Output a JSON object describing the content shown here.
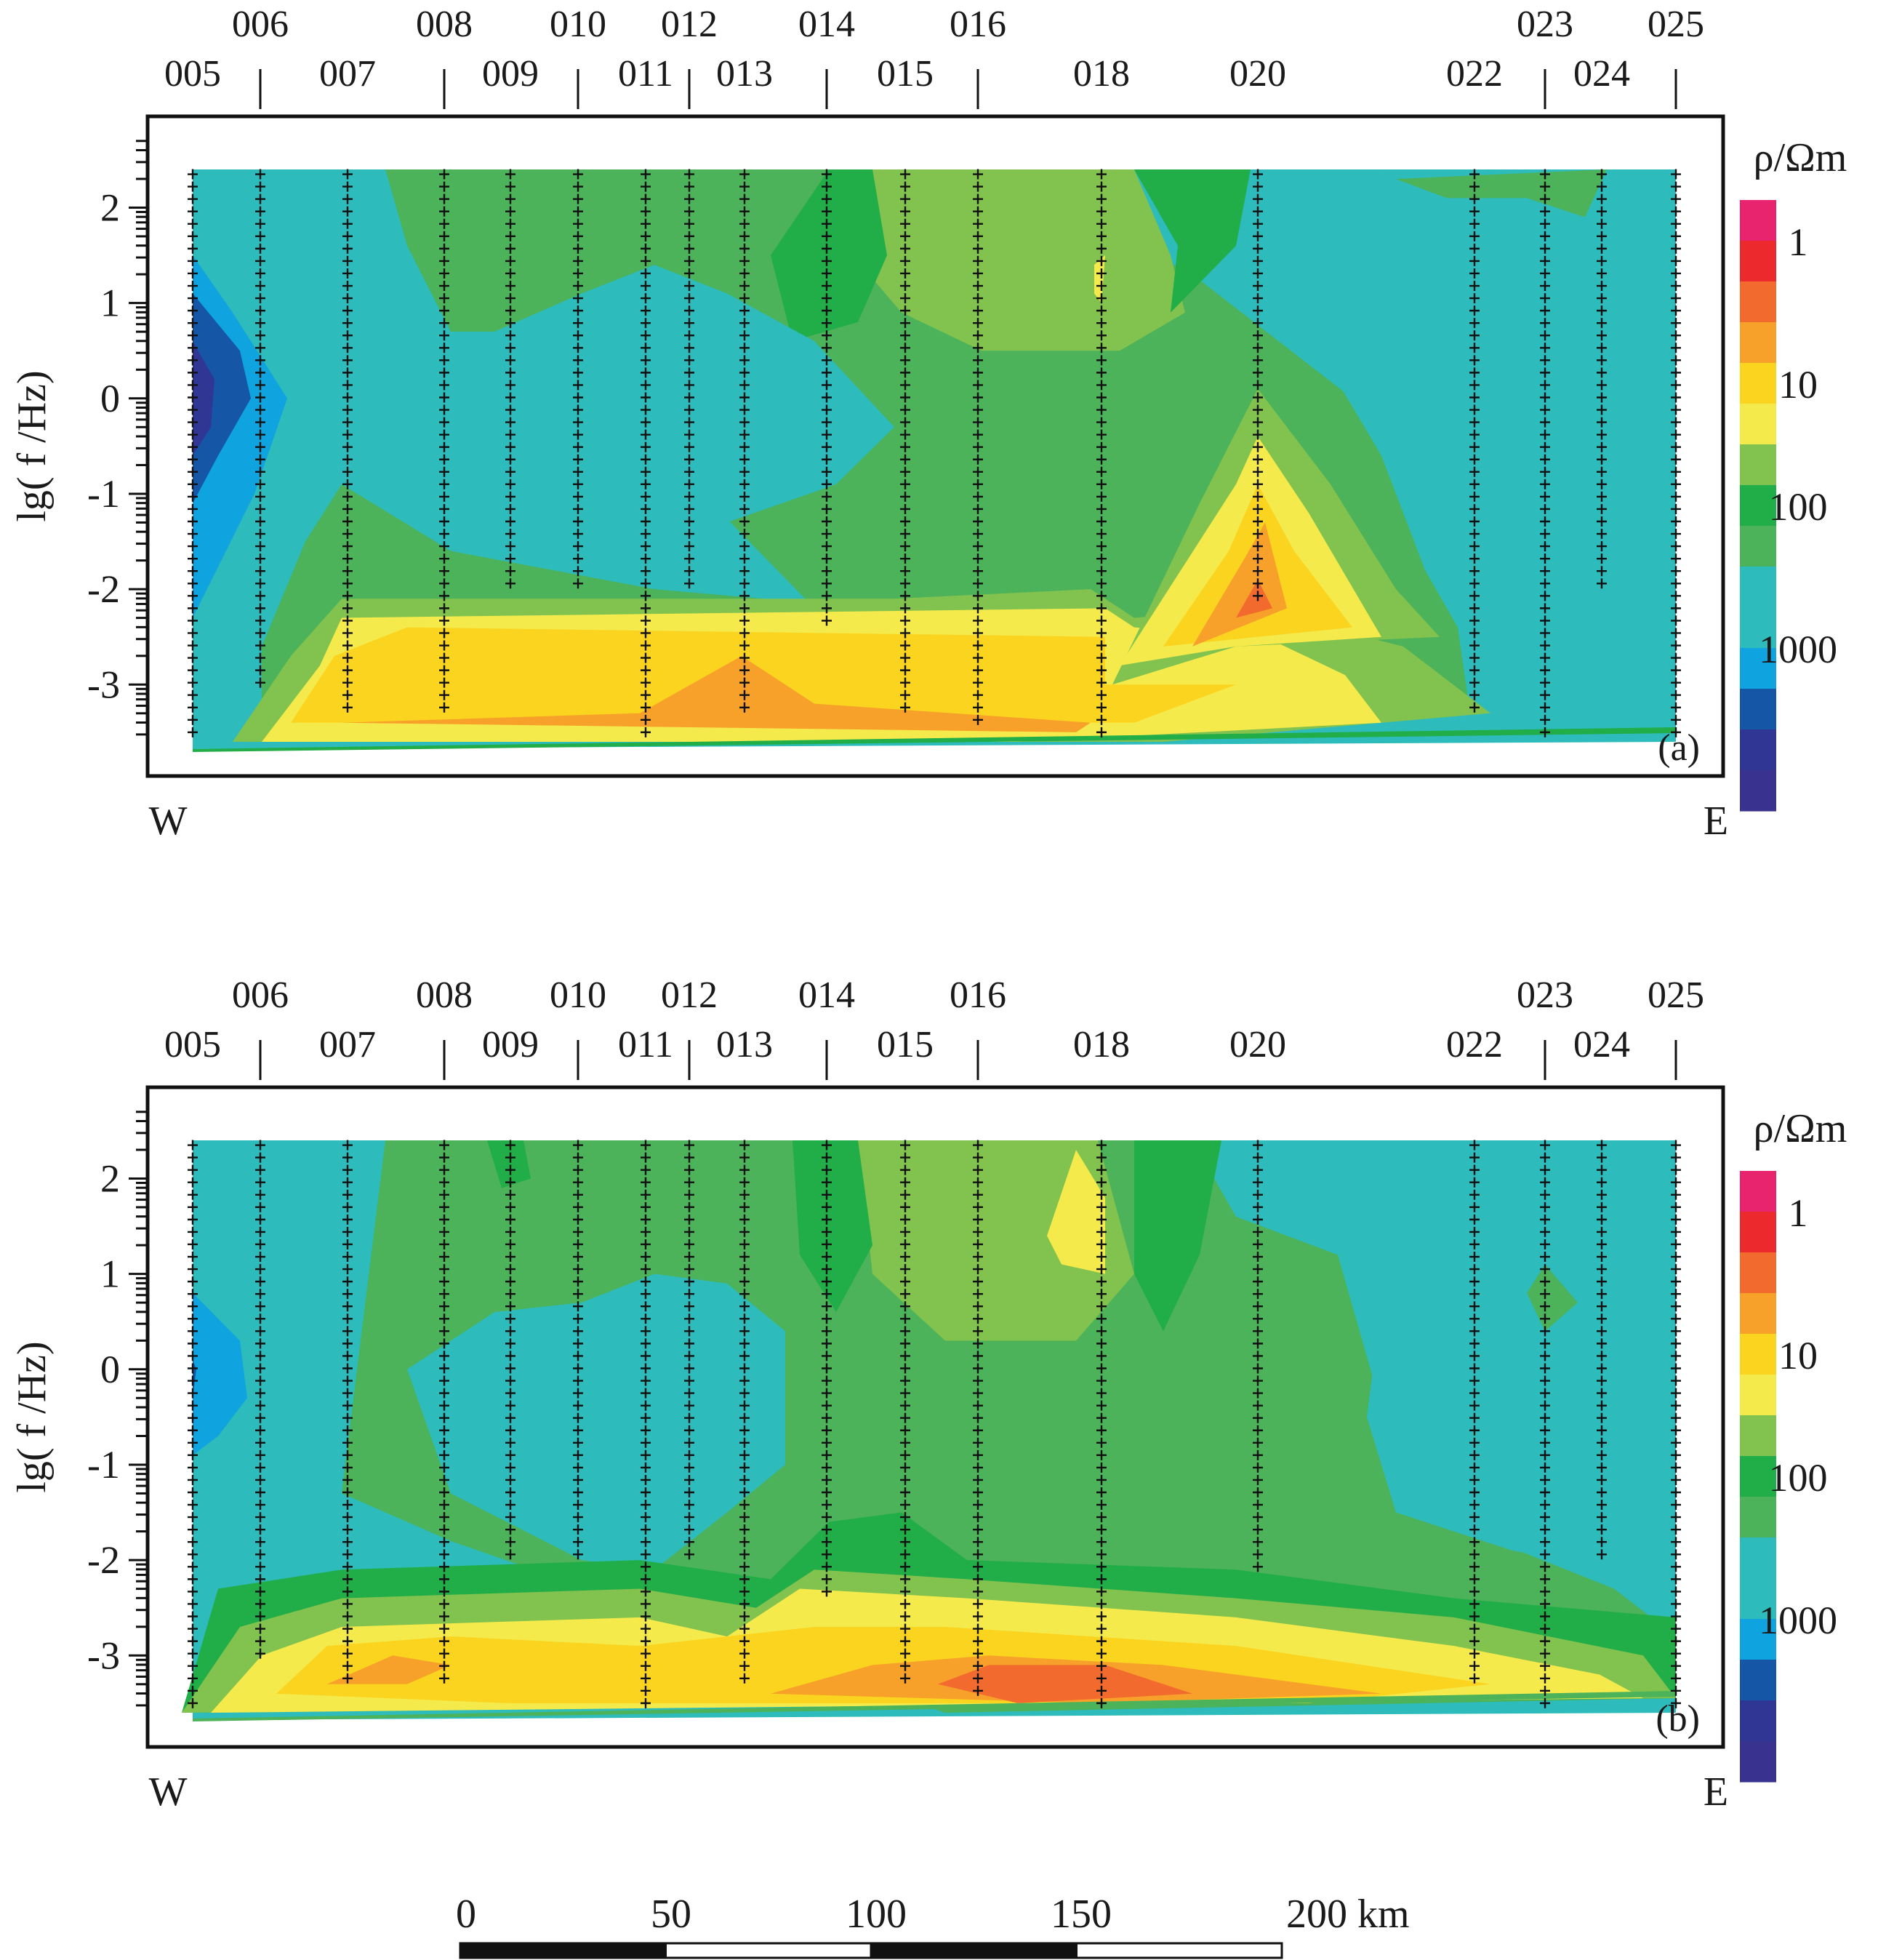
{
  "chart_data": [
    {
      "panel": "(a)",
      "type": "heatmap",
      "ylabel": "lg( f /Hz)",
      "yticks": [
        2,
        1,
        0,
        -1,
        -2,
        -3
      ],
      "ylim": [
        -3.6,
        2.4
      ],
      "direction": {
        "left": "W",
        "right": "E"
      },
      "colorbar": {
        "title": "ρ/Ωm",
        "labels": [
          "1",
          "10",
          "100",
          "1000"
        ]
      },
      "stations": [
        "005",
        "006",
        "007",
        "008",
        "009",
        "010",
        "011",
        "012",
        "013",
        "014",
        "015",
        "016",
        "018",
        "020",
        "022",
        "023",
        "024",
        "025"
      ],
      "station_distance_km": [
        0,
        17,
        39,
        63,
        80,
        97,
        114,
        125,
        138,
        158,
        178,
        196,
        227,
        266,
        320,
        339,
        353,
        370
      ],
      "features": [
        {
          "name": "high resistivity body near 005",
          "x_km": [
            0,
            20
          ],
          "lgf": [
            -1.0,
            1.0
          ],
          "rho_ohm_m": 2000
        },
        {
          "name": "low resistivity band",
          "x_km": [
            35,
            230
          ],
          "lgf": [
            -3.5,
            -2.3
          ],
          "rho_ohm_m": 10
        },
        {
          "name": "conductor below 020",
          "x_km": [
            230,
            300
          ],
          "lgf": [
            -2.6,
            -0.5
          ],
          "rho_ohm_m": 5
        },
        {
          "name": "moderate resistivity east of 022",
          "x_km": [
            290,
            370
          ],
          "lgf": [
            -2.5,
            2.0
          ],
          "rho_ohm_m": 200
        }
      ]
    },
    {
      "panel": "(b)",
      "type": "heatmap",
      "ylabel": "lg( f /Hz)",
      "yticks": [
        2,
        1,
        0,
        -1,
        -2,
        -3
      ],
      "ylim": [
        -3.6,
        2.4
      ],
      "direction": {
        "left": "W",
        "right": "E"
      },
      "colorbar": {
        "title": "ρ/Ωm",
        "labels": [
          "1",
          "10",
          "100",
          "1000"
        ]
      },
      "stations": [
        "005",
        "006",
        "007",
        "008",
        "009",
        "010",
        "011",
        "012",
        "013",
        "014",
        "015",
        "016",
        "018",
        "020",
        "022",
        "023",
        "024",
        "025"
      ],
      "station_distance_km": [
        0,
        17,
        39,
        63,
        80,
        97,
        114,
        125,
        138,
        158,
        178,
        196,
        227,
        266,
        320,
        339,
        353,
        370
      ],
      "features": [
        {
          "name": "high resistivity body near 005",
          "x_km": [
            0,
            15
          ],
          "lgf": [
            -0.8,
            0.8
          ],
          "rho_ohm_m": 1000
        },
        {
          "name": "low resistivity band",
          "x_km": [
            20,
            340
          ],
          "lgf": [
            -3.5,
            -2.2
          ],
          "rho_ohm_m": 8
        },
        {
          "name": "low resistivity near 018",
          "x_km": [
            215,
            230
          ],
          "lgf": [
            1.0,
            2.3
          ],
          "rho_ohm_m": 20
        },
        {
          "name": "moderate resistivity east of 022",
          "x_km": [
            280,
            370
          ],
          "lgf": [
            -2.3,
            2.0
          ],
          "rho_ohm_m": 200
        }
      ]
    }
  ],
  "colors": {
    "c1": "#e8246e",
    "c2": "#ec2a2e",
    "c3": "#f26a2e",
    "c4": "#f7a12a",
    "c5": "#fbd41f",
    "c6": "#f4ea4c",
    "c7": "#82c24e",
    "c8": "#21ad48",
    "c9": "#4cb35a",
    "c10": "#2dbbbb",
    "c11": "#2dbbbb",
    "c12": "#0fa3df",
    "c13": "#1557a6",
    "c14": "#2f3694",
    "c15": "#3a328f"
  },
  "scalebar": {
    "labels": [
      "0",
      "50",
      "100",
      "150",
      "200 km"
    ]
  }
}
